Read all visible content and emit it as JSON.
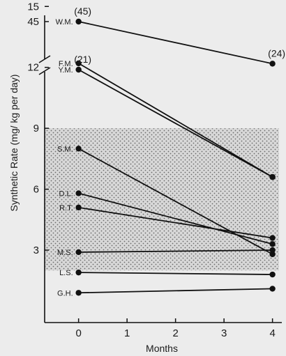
{
  "chart_data": {
    "type": "line",
    "xlabel": "Months",
    "ylabel": "Synthetic Rate  (mg/ kg  per  day)",
    "x_ticks": [
      0,
      1,
      2,
      3,
      4
    ],
    "x_tick_labels": [
      "0",
      "1",
      "2",
      "3",
      "4"
    ],
    "xlim": [
      -0.7,
      4.25
    ],
    "y_ticks": [
      3,
      6,
      9,
      12,
      15,
      45
    ],
    "y_tick_labels": [
      "3",
      "6",
      "9",
      "12",
      "15",
      "45"
    ],
    "y_break": true,
    "shaded_band": {
      "y_range": [
        2,
        9
      ]
    },
    "series": [
      {
        "name": "W.M.",
        "x": [
          0,
          4
        ],
        "values": [
          45,
          24
        ]
      },
      {
        "name": "Y.M.",
        "x": [
          0,
          4
        ],
        "values": [
          21,
          6.6
        ]
      },
      {
        "name": "F.M.",
        "x": [
          0,
          4
        ],
        "values": [
          12.2,
          6.6
        ]
      },
      {
        "name": "S.M.",
        "x": [
          0,
          4
        ],
        "values": [
          8.0,
          2.8
        ]
      },
      {
        "name": "D.L.",
        "x": [
          0,
          4
        ],
        "values": [
          5.8,
          3.3
        ]
      },
      {
        "name": "R.T.",
        "x": [
          0,
          4
        ],
        "values": [
          5.1,
          3.6
        ]
      },
      {
        "name": "M.S.",
        "x": [
          0,
          4
        ],
        "values": [
          2.9,
          3.0
        ]
      },
      {
        "name": "L.S.",
        "x": [
          0,
          4
        ],
        "values": [
          1.9,
          1.8
        ]
      },
      {
        "name": "G.H.",
        "x": [
          0,
          4
        ],
        "values": [
          0.9,
          1.1
        ]
      }
    ],
    "annotations": [
      {
        "text": "(45)",
        "series": "W.M.",
        "point": 0
      },
      {
        "text": "(21)",
        "series": "Y.M.",
        "point": 0
      },
      {
        "text": "(24)",
        "series": "W.M.",
        "point": 1
      }
    ]
  }
}
